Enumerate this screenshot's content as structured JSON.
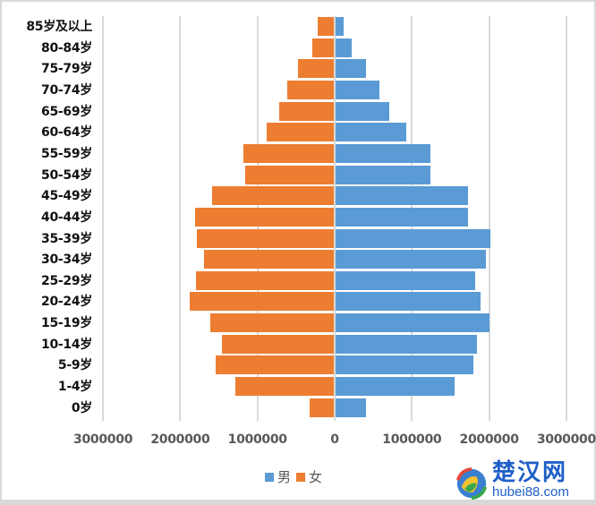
{
  "chart_data": {
    "type": "bar",
    "orientation": "horizontal",
    "subtype": "population-pyramid",
    "title": "",
    "xlabel": "",
    "ylabel": "",
    "categories": [
      "85岁及以上",
      "80-84岁",
      "75-79岁",
      "70-74岁",
      "65-69岁",
      "60-64岁",
      "55-59岁",
      "50-54岁",
      "45-49岁",
      "40-44岁",
      "35-39岁",
      "30-34岁",
      "25-29岁",
      "20-24岁",
      "15-19岁",
      "10-14岁",
      "5-9岁",
      "1-4岁",
      "0岁"
    ],
    "series": [
      {
        "name": "男",
        "color": "#5b9bd5",
        "side": "right",
        "values": [
          110000,
          210000,
          390000,
          570000,
          700000,
          910000,
          1230000,
          1230000,
          1720000,
          1720000,
          2000000,
          1950000,
          1810000,
          1880000,
          1990000,
          1830000,
          1790000,
          1540000,
          390000
        ]
      },
      {
        "name": "女",
        "color": "#ed7d31",
        "side": "left",
        "values": [
          210000,
          280000,
          460000,
          600000,
          710000,
          870000,
          1170000,
          1150000,
          1580000,
          1800000,
          1770000,
          1680000,
          1790000,
          1870000,
          1600000,
          1450000,
          1530000,
          1270000,
          310000
        ]
      }
    ],
    "xlim": [
      -3000000,
      3000000
    ],
    "xticks": [
      -3000000,
      -2000000,
      -1000000,
      0,
      1000000,
      2000000,
      3000000
    ],
    "xtick_labels": [
      "3000000",
      "2000000",
      "1000000",
      "0",
      "1000000",
      "2000000",
      "3000000"
    ],
    "grid": "vertical",
    "legend_position": "bottom"
  },
  "legend": {
    "male": "男",
    "female": "女"
  },
  "watermark": {
    "title": "楚汉网",
    "url": "hubei88.com"
  }
}
